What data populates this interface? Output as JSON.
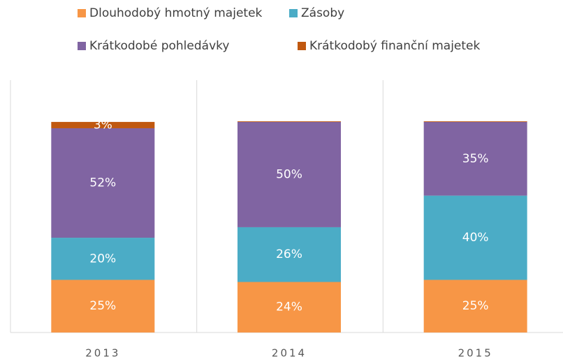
{
  "chart_data": {
    "type": "stacked_bar",
    "categories": [
      "2013",
      "2014",
      "2015"
    ],
    "series": [
      {
        "name": "Dlouhodobý hmotný majetek",
        "color": "#F79646",
        "values": [
          25,
          24,
          25
        ],
        "value_labels": [
          "25%",
          "24%",
          "25%"
        ]
      },
      {
        "name": "Zásoby",
        "color": "#4BACC6",
        "values": [
          20,
          26,
          40
        ],
        "value_labels": [
          "20%",
          "26%",
          "40%"
        ]
      },
      {
        "name": "Krátkodobé pohledávky",
        "color": "#8064A2",
        "values": [
          52,
          50,
          35
        ],
        "value_labels": [
          "52%",
          "50%",
          "35%"
        ]
      },
      {
        "name": "Krátkodobý finanční majetek",
        "color": "#C0580F",
        "values": [
          3,
          0.3,
          0.3
        ],
        "value_labels": [
          "3%",
          null,
          null
        ]
      }
    ],
    "legend": "top",
    "grid": true
  }
}
